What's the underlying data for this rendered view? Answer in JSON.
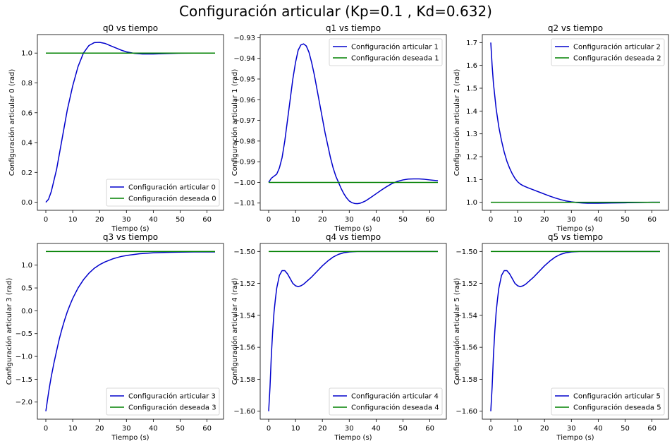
{
  "figure_title": "Configuración articular (Kp=0.1 , Kd=0.632)",
  "colors": {
    "actual": "#0000cc",
    "desired": "#008000",
    "axis": "#000000"
  },
  "chart_data": [
    {
      "type": "line",
      "title": "q0 vs tiempo",
      "xlabel": "Tiempo (s)",
      "ylabel": "Configuración articular 0 (rad)",
      "xlim": [
        -3.15,
        66.15
      ],
      "ylim": [
        -0.054,
        1.124
      ],
      "xticks": [
        0,
        10,
        20,
        30,
        40,
        50,
        60
      ],
      "xtick_labels": [
        "0",
        "10",
        "20",
        "30",
        "40",
        "50",
        "60"
      ],
      "yticks": [
        0.0,
        0.2,
        0.4,
        0.6,
        0.8,
        1.0
      ],
      "ytick_labels": [
        "0.0",
        "0.2",
        "0.4",
        "0.6",
        "0.8",
        "1.0"
      ],
      "legend_position": "lower-right",
      "series": [
        {
          "name": "Configuración articular 0",
          "role": "actual",
          "x": [
            0,
            1,
            2,
            4,
            6,
            8,
            10,
            12,
            14,
            16,
            18,
            20,
            22,
            24,
            26,
            28,
            30,
            33,
            36,
            40,
            45,
            50,
            55,
            60,
            63
          ],
          "y": [
            0.0,
            0.02,
            0.07,
            0.22,
            0.42,
            0.62,
            0.78,
            0.91,
            1.0,
            1.05,
            1.07,
            1.072,
            1.065,
            1.05,
            1.035,
            1.02,
            1.008,
            0.998,
            0.994,
            0.994,
            0.997,
            0.999,
            1.0,
            1.0,
            1.0
          ]
        },
        {
          "name": "Configuración deseada 0",
          "role": "desired",
          "x": [
            0,
            63
          ],
          "y": [
            1.0,
            1.0
          ]
        }
      ]
    },
    {
      "type": "line",
      "title": "q1 vs tiempo",
      "xlabel": "Tiempo (s)",
      "ylabel": "Configuración articular 1 (rad)",
      "xlim": [
        -3.15,
        66.15
      ],
      "ylim": [
        -1.0135,
        -0.9285
      ],
      "xticks": [
        0,
        10,
        20,
        30,
        40,
        50,
        60
      ],
      "xtick_labels": [
        "0",
        "10",
        "20",
        "30",
        "40",
        "50",
        "60"
      ],
      "yticks": [
        -1.01,
        -1.0,
        -0.99,
        -0.98,
        -0.97,
        -0.96,
        -0.95,
        -0.94,
        -0.93
      ],
      "ytick_labels": [
        "−1.01",
        "−1.00",
        "−0.99",
        "−0.98",
        "−0.97",
        "−0.96",
        "−0.95",
        "−0.94",
        "−0.93"
      ],
      "legend_position": "top-right",
      "series": [
        {
          "name": "Configuración articular 1",
          "role": "actual",
          "x": [
            0,
            1,
            2,
            3,
            4,
            5,
            6,
            7,
            8,
            9,
            10,
            11,
            12,
            13,
            14,
            15,
            16,
            17,
            18,
            19,
            20,
            21,
            22,
            23,
            24,
            25,
            26,
            27,
            28,
            29,
            30,
            31,
            32,
            33,
            34,
            35,
            36,
            38,
            40,
            42,
            44,
            46,
            48,
            50,
            52,
            54,
            56,
            58,
            60,
            63
          ],
          "y": [
            -1.0,
            -0.998,
            -0.997,
            -0.996,
            -0.993,
            -0.988,
            -0.98,
            -0.97,
            -0.96,
            -0.95,
            -0.942,
            -0.936,
            -0.9335,
            -0.933,
            -0.934,
            -0.937,
            -0.942,
            -0.948,
            -0.955,
            -0.962,
            -0.969,
            -0.976,
            -0.982,
            -0.988,
            -0.993,
            -0.997,
            -1.0,
            -1.003,
            -1.0055,
            -1.0075,
            -1.009,
            -1.0098,
            -1.0102,
            -1.0103,
            -1.0101,
            -1.0096,
            -1.009,
            -1.0073,
            -1.0055,
            -1.0037,
            -1.002,
            -1.0005,
            -0.9995,
            -0.9988,
            -0.9984,
            -0.9983,
            -0.9983,
            -0.9985,
            -0.9988,
            -0.9992
          ]
        },
        {
          "name": "Configuración deseada 1",
          "role": "desired",
          "x": [
            0,
            63
          ],
          "y": [
            -1.0,
            -1.0
          ]
        }
      ]
    },
    {
      "type": "line",
      "title": "q2 vs tiempo",
      "xlabel": "Tiempo (s)",
      "ylabel": "Configuración articular 2 (rad)",
      "xlim": [
        -3.15,
        66.15
      ],
      "ylim": [
        0.965,
        1.735
      ],
      "xticks": [
        0,
        10,
        20,
        30,
        40,
        50,
        60
      ],
      "xtick_labels": [
        "0",
        "10",
        "20",
        "30",
        "40",
        "50",
        "60"
      ],
      "yticks": [
        1.0,
        1.1,
        1.2,
        1.3,
        1.4,
        1.5,
        1.6,
        1.7
      ],
      "ytick_labels": [
        "1.0",
        "1.1",
        "1.2",
        "1.3",
        "1.4",
        "1.5",
        "1.6",
        "1.7"
      ],
      "legend_position": "top-right",
      "series": [
        {
          "name": "Configuración articular 2",
          "role": "actual",
          "x": [
            0,
            0.5,
            1,
            2,
            3,
            4,
            5,
            6,
            7,
            8,
            9,
            10,
            11,
            12,
            14,
            16,
            18,
            20,
            22,
            24,
            26,
            28,
            30,
            32,
            34,
            36,
            38,
            40,
            45,
            50,
            55,
            60,
            63
          ],
          "y": [
            1.7,
            1.6,
            1.52,
            1.41,
            1.33,
            1.27,
            1.22,
            1.18,
            1.15,
            1.125,
            1.105,
            1.09,
            1.08,
            1.073,
            1.063,
            1.054,
            1.045,
            1.036,
            1.027,
            1.019,
            1.012,
            1.006,
            1.002,
            0.999,
            0.997,
            0.996,
            0.996,
            0.996,
            0.997,
            0.998,
            0.999,
            1.0,
            1.0
          ]
        },
        {
          "name": "Configuración deseada 2",
          "role": "desired",
          "x": [
            0,
            63
          ],
          "y": [
            1.0,
            1.0
          ]
        }
      ]
    },
    {
      "type": "line",
      "title": "q3 vs tiempo",
      "xlabel": "Tiempo (s)",
      "ylabel": "Configuración articular 3 (rad)",
      "xlim": [
        -3.15,
        66.15
      ],
      "ylim": [
        -2.375,
        1.475
      ],
      "xticks": [
        0,
        10,
        20,
        30,
        40,
        50,
        60
      ],
      "xtick_labels": [
        "0",
        "10",
        "20",
        "30",
        "40",
        "50",
        "60"
      ],
      "yticks": [
        -2.0,
        -1.5,
        -1.0,
        -0.5,
        0.0,
        0.5,
        1.0
      ],
      "ytick_labels": [
        "−2.0",
        "−1.5",
        "−1.0",
        "−0.5",
        "0.0",
        "0.5",
        "1.0"
      ],
      "legend_position": "lower-right",
      "series": [
        {
          "name": "Configuración articular 3",
          "role": "actual",
          "x": [
            0,
            0.5,
            1,
            1.5,
            2,
            3,
            4,
            5,
            6,
            7,
            8,
            9,
            10,
            12,
            14,
            16,
            18,
            20,
            22,
            25,
            28,
            31,
            35,
            40,
            45,
            50,
            55,
            60,
            63
          ],
          "y": [
            -2.2,
            -2.0,
            -1.8,
            -1.62,
            -1.45,
            -1.15,
            -0.88,
            -0.62,
            -0.4,
            -0.2,
            -0.02,
            0.13,
            0.27,
            0.5,
            0.68,
            0.82,
            0.93,
            1.01,
            1.07,
            1.14,
            1.19,
            1.22,
            1.25,
            1.27,
            1.28,
            1.285,
            1.29,
            1.29,
            1.29
          ]
        },
        {
          "name": "Configuración deseada 3",
          "role": "desired",
          "x": [
            0,
            63
          ],
          "y": [
            1.3,
            1.3
          ]
        }
      ]
    },
    {
      "type": "line",
      "title": "q4 vs tiempo",
      "xlabel": "Tiempo (s)",
      "ylabel": "Configuración articular 4 (rad)",
      "xlim": [
        -3.15,
        66.15
      ],
      "ylim": [
        -1.605,
        -1.495
      ],
      "xticks": [
        0,
        10,
        20,
        30,
        40,
        50,
        60
      ],
      "xtick_labels": [
        "0",
        "10",
        "20",
        "30",
        "40",
        "50",
        "60"
      ],
      "yticks": [
        -1.6,
        -1.58,
        -1.56,
        -1.54,
        -1.52,
        -1.5
      ],
      "ytick_labels": [
        "−1.60",
        "−1.58",
        "−1.56",
        "−1.54",
        "−1.52",
        "−1.50"
      ],
      "legend_position": "lower-right",
      "series": [
        {
          "name": "Configuración articular 4",
          "role": "actual",
          "x": [
            0,
            0.5,
            1,
            1.5,
            2,
            2.5,
            3,
            4,
            5,
            6,
            7,
            8,
            9,
            10,
            11,
            12,
            13,
            14,
            16,
            18,
            20,
            22,
            24,
            26,
            28,
            30,
            33,
            36,
            40,
            45,
            50,
            55,
            60,
            63
          ],
          "y": [
            -1.6,
            -1.585,
            -1.565,
            -1.55,
            -1.538,
            -1.53,
            -1.523,
            -1.515,
            -1.512,
            -1.512,
            -1.514,
            -1.517,
            -1.52,
            -1.5215,
            -1.522,
            -1.5215,
            -1.5205,
            -1.519,
            -1.516,
            -1.5125,
            -1.509,
            -1.506,
            -1.5035,
            -1.5018,
            -1.5008,
            -1.5003,
            -1.5,
            -1.5,
            -1.5,
            -1.5,
            -1.5,
            -1.5,
            -1.5,
            -1.5
          ]
        },
        {
          "name": "Configuración deseada 4",
          "role": "desired",
          "x": [
            0,
            63
          ],
          "y": [
            -1.5,
            -1.5
          ]
        }
      ]
    },
    {
      "type": "line",
      "title": "q5 vs tiempo",
      "xlabel": "Tiempo (s)",
      "ylabel": "Configuración articular 5 (rad)",
      "xlim": [
        -3.15,
        66.15
      ],
      "ylim": [
        -1.605,
        -1.495
      ],
      "xticks": [
        0,
        10,
        20,
        30,
        40,
        50,
        60
      ],
      "xtick_labels": [
        "0",
        "10",
        "20",
        "30",
        "40",
        "50",
        "60"
      ],
      "yticks": [
        -1.6,
        -1.58,
        -1.56,
        -1.54,
        -1.52,
        -1.5
      ],
      "ytick_labels": [
        "−1.60",
        "−1.58",
        "−1.56",
        "−1.54",
        "−1.52",
        "−1.50"
      ],
      "legend_position": "lower-right",
      "series": [
        {
          "name": "Configuración articular 5",
          "role": "actual",
          "x": [
            0,
            0.5,
            1,
            1.5,
            2,
            2.5,
            3,
            4,
            5,
            6,
            7,
            8,
            9,
            10,
            11,
            12,
            13,
            14,
            16,
            18,
            20,
            22,
            24,
            26,
            28,
            30,
            33,
            36,
            40,
            45,
            50,
            55,
            60,
            63
          ],
          "y": [
            -1.6,
            -1.585,
            -1.565,
            -1.55,
            -1.538,
            -1.53,
            -1.523,
            -1.515,
            -1.512,
            -1.512,
            -1.514,
            -1.517,
            -1.52,
            -1.5215,
            -1.522,
            -1.5215,
            -1.5205,
            -1.519,
            -1.516,
            -1.5125,
            -1.509,
            -1.506,
            -1.5035,
            -1.5018,
            -1.5008,
            -1.5003,
            -1.5,
            -1.5,
            -1.5,
            -1.5,
            -1.5,
            -1.5,
            -1.5,
            -1.5
          ]
        },
        {
          "name": "Configuración deseada 5",
          "role": "desired",
          "x": [
            0,
            63
          ],
          "y": [
            -1.5,
            -1.5
          ]
        }
      ]
    }
  ]
}
